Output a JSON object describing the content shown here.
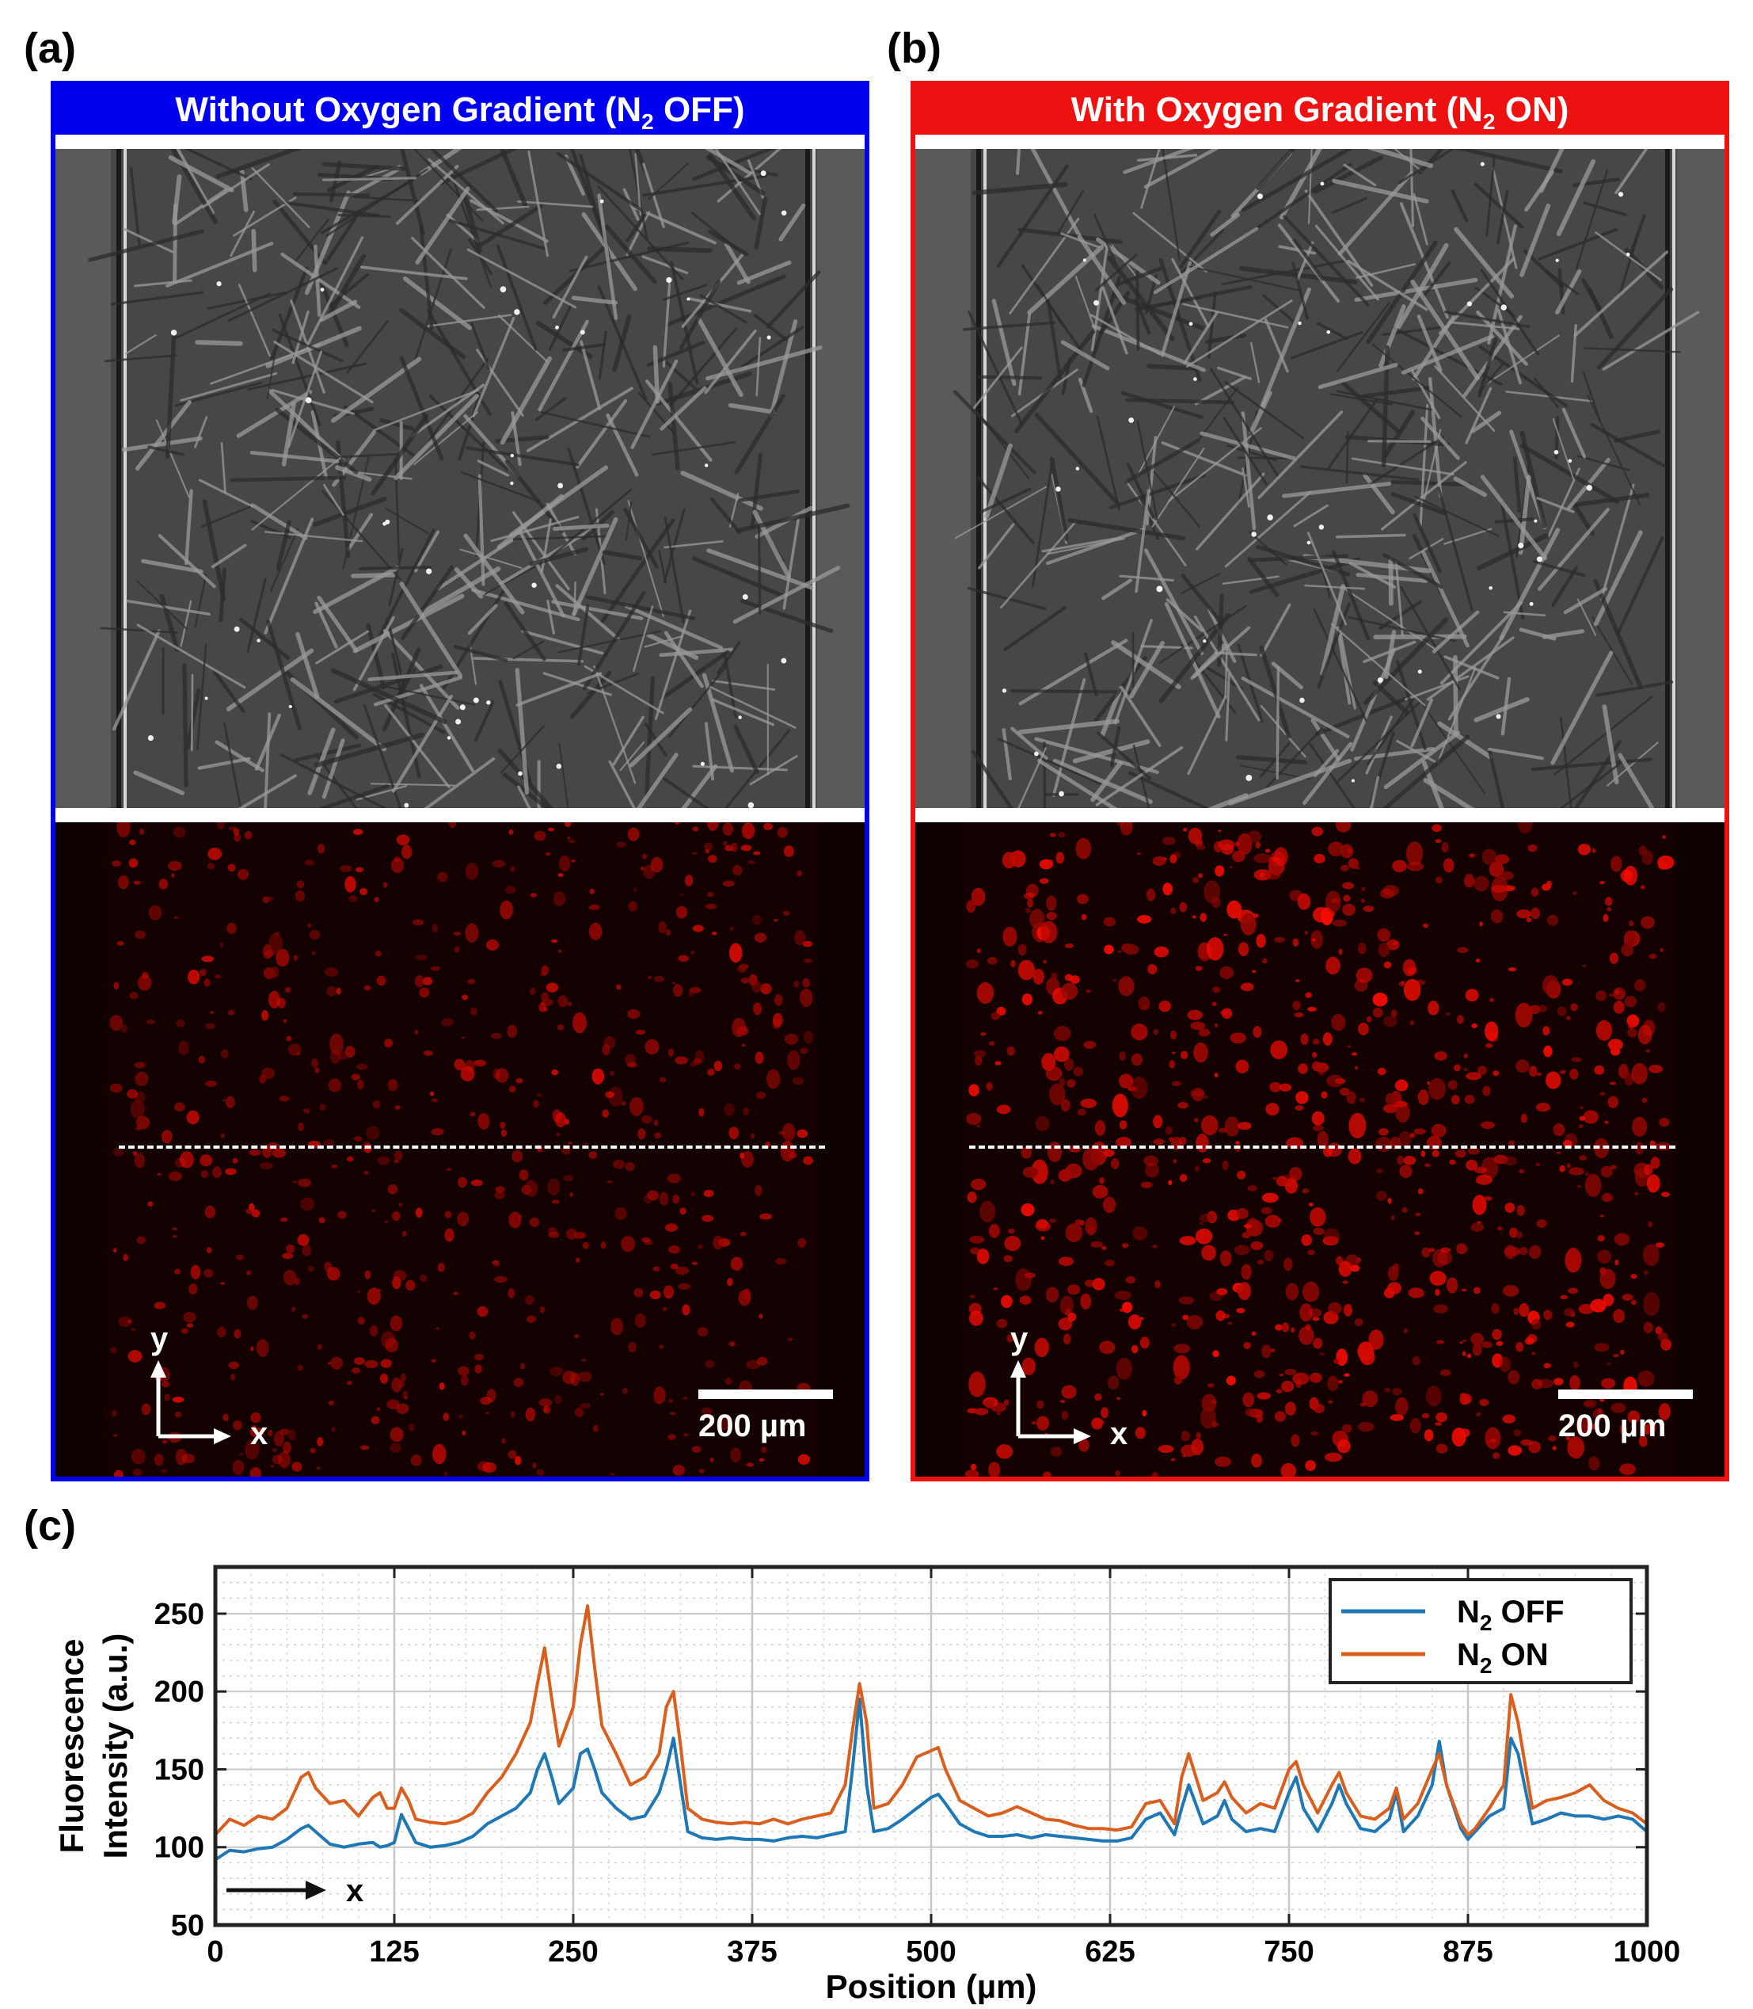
{
  "panels": [
    {
      "letter": "(a)",
      "title": "Without Oxygen Gradient (N",
      "title_sub": "2",
      "title_end": " OFF)",
      "color": "#0000ee",
      "scale_label": "200 µm",
      "axis_y": "y",
      "axis_x": "x"
    },
    {
      "letter": "(b)",
      "title": "With Oxygen Gradient (N",
      "title_sub": "2",
      "title_end": " ON)",
      "color": "#ee1111",
      "scale_label": "200 µm",
      "axis_y": "y",
      "axis_x": "x"
    }
  ],
  "chart_panel_letter": "(c)",
  "chart_data": {
    "type": "line",
    "xlabel": "Position (µm)",
    "ylabel_line1": "Fluorescence",
    "ylabel_line2": "Intensity (a.u.)",
    "xlim": [
      0,
      1000
    ],
    "ylim": [
      50,
      280
    ],
    "xticks": [
      0,
      125,
      250,
      375,
      500,
      625,
      750,
      875,
      1000
    ],
    "yticks": [
      50,
      100,
      150,
      200,
      250
    ],
    "grid": true,
    "legend_position": "top-right",
    "arrow_label": "x",
    "series": [
      {
        "name": "N",
        "name_sub": "2",
        "name_end": " OFF",
        "color": "#1f77b4",
        "x": [
          0,
          10,
          20,
          30,
          40,
          50,
          60,
          65,
          70,
          80,
          90,
          100,
          110,
          115,
          120,
          125,
          130,
          135,
          140,
          150,
          160,
          170,
          180,
          190,
          200,
          210,
          220,
          225,
          230,
          235,
          240,
          250,
          255,
          260,
          265,
          270,
          280,
          290,
          300,
          310,
          315,
          320,
          325,
          330,
          340,
          350,
          360,
          370,
          380,
          390,
          400,
          410,
          420,
          430,
          440,
          445,
          450,
          455,
          460,
          470,
          480,
          490,
          500,
          505,
          510,
          520,
          530,
          540,
          550,
          560,
          570,
          580,
          590,
          600,
          610,
          620,
          630,
          640,
          650,
          660,
          670,
          675,
          680,
          690,
          700,
          705,
          710,
          720,
          730,
          740,
          750,
          755,
          760,
          770,
          780,
          785,
          790,
          800,
          810,
          820,
          825,
          830,
          840,
          850,
          855,
          860,
          870,
          875,
          880,
          890,
          900,
          905,
          910,
          920,
          930,
          940,
          950,
          960,
          970,
          980,
          990,
          1000
        ],
        "y": [
          92,
          98,
          97,
          99,
          100,
          105,
          112,
          114,
          110,
          102,
          100,
          102,
          103,
          100,
          101,
          103,
          121,
          112,
          103,
          100,
          101,
          103,
          107,
          115,
          120,
          125,
          135,
          150,
          160,
          145,
          128,
          138,
          160,
          163,
          150,
          135,
          125,
          118,
          120,
          135,
          150,
          170,
          140,
          110,
          106,
          105,
          106,
          105,
          105,
          104,
          106,
          107,
          106,
          108,
          110,
          150,
          195,
          140,
          110,
          112,
          118,
          125,
          132,
          134,
          128,
          115,
          110,
          107,
          107,
          108,
          106,
          108,
          107,
          106,
          105,
          104,
          104,
          106,
          118,
          122,
          108,
          125,
          140,
          115,
          120,
          130,
          118,
          110,
          112,
          110,
          135,
          145,
          125,
          110,
          128,
          140,
          128,
          112,
          110,
          118,
          135,
          110,
          120,
          140,
          168,
          140,
          112,
          105,
          110,
          120,
          125,
          170,
          160,
          115,
          118,
          122,
          120,
          120,
          118,
          120,
          118,
          110
        ]
      },
      {
        "name": "N",
        "name_sub": "2",
        "name_end": " ON",
        "color": "#d95f1f",
        "x": [
          0,
          10,
          20,
          30,
          40,
          50,
          60,
          65,
          70,
          80,
          90,
          100,
          110,
          115,
          120,
          125,
          130,
          135,
          140,
          150,
          160,
          170,
          180,
          190,
          200,
          210,
          220,
          225,
          230,
          235,
          240,
          250,
          255,
          260,
          265,
          270,
          280,
          290,
          300,
          310,
          315,
          320,
          325,
          330,
          340,
          350,
          360,
          370,
          380,
          390,
          400,
          410,
          420,
          430,
          440,
          445,
          450,
          455,
          460,
          470,
          480,
          490,
          500,
          505,
          510,
          520,
          530,
          540,
          550,
          560,
          570,
          580,
          590,
          600,
          610,
          620,
          630,
          640,
          650,
          660,
          670,
          675,
          680,
          690,
          700,
          705,
          710,
          720,
          730,
          740,
          750,
          755,
          760,
          770,
          780,
          785,
          790,
          800,
          810,
          820,
          825,
          830,
          840,
          850,
          855,
          860,
          870,
          875,
          880,
          890,
          900,
          905,
          910,
          920,
          930,
          940,
          950,
          960,
          970,
          980,
          990,
          1000
        ],
        "y": [
          108,
          118,
          114,
          120,
          118,
          125,
          145,
          148,
          138,
          128,
          130,
          120,
          132,
          135,
          125,
          125,
          138,
          130,
          118,
          116,
          115,
          117,
          122,
          135,
          145,
          160,
          180,
          205,
          228,
          195,
          165,
          190,
          230,
          255,
          215,
          178,
          160,
          140,
          145,
          160,
          190,
          200,
          165,
          125,
          118,
          116,
          115,
          116,
          115,
          118,
          115,
          118,
          120,
          122,
          140,
          175,
          205,
          180,
          125,
          128,
          140,
          158,
          162,
          164,
          150,
          130,
          125,
          120,
          122,
          126,
          122,
          118,
          117,
          114,
          112,
          112,
          111,
          113,
          128,
          130,
          115,
          145,
          160,
          130,
          135,
          142,
          132,
          122,
          128,
          125,
          150,
          155,
          140,
          122,
          140,
          148,
          135,
          120,
          118,
          125,
          138,
          118,
          128,
          150,
          160,
          140,
          115,
          108,
          112,
          125,
          140,
          198,
          180,
          125,
          130,
          132,
          135,
          140,
          130,
          125,
          122,
          115
        ]
      }
    ]
  }
}
